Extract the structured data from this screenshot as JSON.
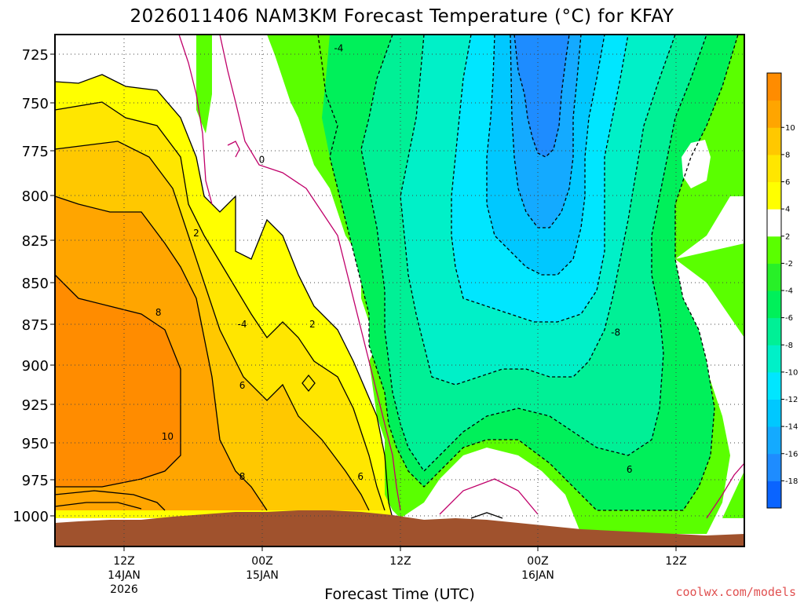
{
  "chart_data": {
    "type": "heatmap",
    "title": "2026011406 NAM3KM Forecast Temperature (°C) for KFAY",
    "xlabel": "Forecast Time (UTC)",
    "ylabel": "",
    "y_axis": {
      "unit": "hPa",
      "inverted": true,
      "range": [
        1015,
        713
      ],
      "ticks": [
        "725",
        "750",
        "775",
        "800",
        "825",
        "850",
        "875",
        "900",
        "925",
        "950",
        "975",
        "1000"
      ]
    },
    "x_axis": {
      "range_hours_from_init": [
        0,
        60
      ],
      "ticks": [
        {
          "hour": 6,
          "label": [
            "12Z",
            "14JAN",
            "2026"
          ]
        },
        {
          "hour": 18,
          "label": [
            "00Z",
            "15JAN"
          ]
        },
        {
          "hour": 30,
          "label": [
            "12Z"
          ]
        },
        {
          "hour": 42,
          "label": [
            "00Z",
            "16JAN"
          ]
        },
        {
          "hour": 54,
          "label": [
            "12Z"
          ]
        }
      ]
    },
    "grid": true,
    "colorbar": {
      "placement": "right",
      "levels": [
        -20,
        -18,
        -16,
        -14,
        -12,
        -10,
        -8,
        -6,
        -4,
        -2,
        2,
        4,
        6,
        8,
        10,
        12
      ],
      "colors": [
        "#0a64ff",
        "#1e8cff",
        "#14aaff",
        "#00c8ff",
        "#00e6ff",
        "#00f0c8",
        "#00f096",
        "#00f05a",
        "#28f028",
        "#5aff00",
        "#ffffff",
        "#ffff00",
        "#ffe600",
        "#ffc800",
        "#ffa500",
        "#ff8c00"
      ],
      "tick_labels": [
        "-18",
        "-16",
        "-14",
        "-12",
        "-10",
        "-8",
        "-6",
        "-4",
        "-2",
        "2",
        "4",
        "6",
        "8",
        "10"
      ]
    },
    "contour_labels": [
      {
        "text": "-4",
        "hour": 24.7,
        "p": 722
      },
      {
        "text": "0",
        "hour": 18.0,
        "p": 780
      },
      {
        "text": "2",
        "hour": 12.3,
        "p": 821
      },
      {
        "text": "8",
        "hour": 9.0,
        "p": 868
      },
      {
        "text": "-4",
        "hour": 16.3,
        "p": 875
      },
      {
        "text": "2",
        "hour": 22.4,
        "p": 875
      },
      {
        "text": "-8",
        "hour": 48.8,
        "p": 880
      },
      {
        "text": "6",
        "hour": 16.3,
        "p": 913
      },
      {
        "text": "10",
        "hour": 9.8,
        "p": 946
      },
      {
        "text": "8",
        "hour": 16.3,
        "p": 973
      },
      {
        "text": "6",
        "hour": 26.6,
        "p": 973
      },
      {
        "text": "6",
        "hour": 50.0,
        "p": 968
      }
    ],
    "regions": [
      {
        "color": "#5aff00",
        "label": "-2 to -4",
        "approx_hours": [
          26,
          60
        ],
        "approx_p": [
          713,
          1000
        ]
      },
      {
        "color": "#00f05a",
        "label": "-4 to -6",
        "approx_hours": [
          28,
          58
        ],
        "approx_p": [
          760,
          975
        ]
      },
      {
        "color": "#00f096",
        "label": "-6 to -8",
        "approx_hours": [
          30,
          57
        ],
        "approx_p": [
          713,
          965
        ]
      },
      {
        "color": "#00f0c8",
        "label": "-8 to -10",
        "approx_hours": [
          33,
          54
        ],
        "approx_p": [
          713,
          930
        ]
      },
      {
        "color": "#00e6ff",
        "label": "-10 to -12",
        "approx_hours": [
          36,
          50
        ],
        "approx_p": [
          713,
          870
        ]
      },
      {
        "color": "#00c8ff",
        "label": "-12 to -14",
        "approx_hours": [
          38,
          47
        ],
        "approx_p": [
          713,
          835
        ]
      },
      {
        "color": "#14aaff",
        "label": "-14 to -16",
        "approx_hours": [
          40,
          45
        ],
        "approx_p": [
          713,
          810
        ]
      },
      {
        "color": "#1e8cff",
        "label": "-16 to -18",
        "approx_hours": [
          40.5,
          44
        ],
        "approx_p": [
          713,
          785
        ]
      }
    ]
  },
  "credit": "coolwx.com/models"
}
